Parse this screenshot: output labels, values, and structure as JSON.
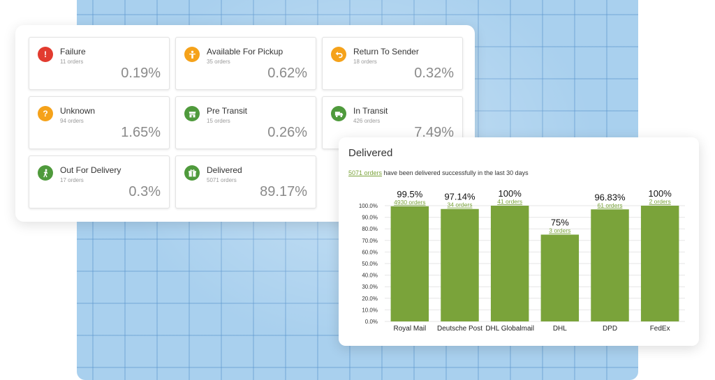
{
  "status_tiles": [
    {
      "label": "Failure",
      "orders": "11 orders",
      "percent": "0.19%",
      "icon": "exclamation-icon",
      "color": "#e23b2f"
    },
    {
      "label": "Available For Pickup",
      "orders": "35 orders",
      "percent": "0.62%",
      "icon": "person-icon",
      "color": "#f5a21a"
    },
    {
      "label": "Return To Sender",
      "orders": "18 orders",
      "percent": "0.32%",
      "icon": "return-arrow-icon",
      "color": "#f5a21a"
    },
    {
      "label": "Unknown",
      "orders": "94 orders",
      "percent": "1.65%",
      "icon": "question-icon",
      "color": "#f5a21a"
    },
    {
      "label": "Pre Transit",
      "orders": "15 orders",
      "percent": "0.26%",
      "icon": "store-icon",
      "color": "#4f9a3c"
    },
    {
      "label": "In Transit",
      "orders": "426 orders",
      "percent": "7.49%",
      "icon": "truck-icon",
      "color": "#4f9a3c"
    },
    {
      "label": "Out For Delivery",
      "orders": "17 orders",
      "percent": "0.3%",
      "icon": "walking-person-icon",
      "color": "#4f9a3c"
    },
    {
      "label": "Delivered",
      "orders": "5071 orders",
      "percent": "89.17%",
      "icon": "package-icon",
      "color": "#4f9a3c"
    }
  ],
  "delivered": {
    "title": "Delivered",
    "summary_link": "5071 orders",
    "summary_text": " have been delivered successfully in the last 30 days"
  },
  "chart_data": {
    "type": "bar",
    "categories": [
      "Royal Mail",
      "Deutsche Post",
      "DHL Globalmail",
      "DHL",
      "DPD",
      "FedEx"
    ],
    "values": [
      99.5,
      97.14,
      100,
      75,
      96.83,
      100
    ],
    "value_labels": [
      "99.5%",
      "97.14%",
      "100%",
      "75%",
      "96.83%",
      "100%"
    ],
    "order_labels": [
      "4930 orders",
      "34 orders",
      "41 orders",
      "3 orders",
      "61 orders",
      "2 orders"
    ],
    "y_ticks": [
      "0.0%",
      "10.0%",
      "20.0%",
      "30.0%",
      "40.0%",
      "50.0%",
      "60.0%",
      "70.0%",
      "80.0%",
      "90.0%",
      "100.0%"
    ],
    "ylim": [
      0,
      100
    ],
    "bar_color": "#7aa33a",
    "grid": true
  }
}
